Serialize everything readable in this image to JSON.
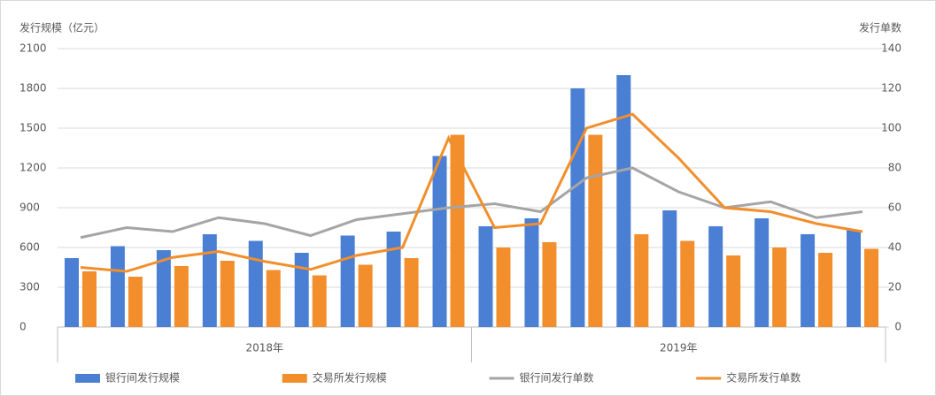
{
  "chart_data": {
    "type": "bar-line",
    "y_label": "发行规模（亿元）",
    "y2_label": "发行单数",
    "categories": [
      null,
      null,
      null,
      null,
      null,
      null,
      null,
      null,
      null,
      null,
      null,
      null,
      null,
      null,
      null,
      null,
      null,
      null
    ],
    "x_groups": [
      "2018年",
      "2019年"
    ],
    "ylim": [
      0,
      2100
    ],
    "yticks": [
      0,
      300,
      600,
      900,
      1200,
      1500,
      1800,
      2100
    ],
    "y2lim": [
      0,
      140
    ],
    "y2ticks": [
      0,
      20,
      40,
      60,
      80,
      100,
      120,
      140
    ],
    "grid": true,
    "series": [
      {
        "name": "银行间发行规模",
        "kind": "bar",
        "color": "#4a7fd4",
        "values": [
          520,
          610,
          580,
          700,
          650,
          560,
          690,
          720,
          1290,
          760,
          820,
          1800,
          1900,
          880,
          760,
          820,
          700,
          730
        ]
      },
      {
        "name": "交易所发行规模",
        "kind": "bar",
        "color": "#f28e2b",
        "values": [
          420,
          380,
          460,
          500,
          430,
          390,
          470,
          520,
          1450,
          600,
          640,
          1450,
          700,
          650,
          540,
          600,
          560,
          590
        ]
      },
      {
        "name": "银行间发行单数",
        "kind": "line",
        "axis": "y2",
        "color": "#a5a5a5",
        "values": [
          45,
          50,
          48,
          55,
          52,
          46,
          54,
          57,
          60,
          62,
          58,
          75,
          80,
          68,
          60,
          63,
          55,
          58
        ]
      },
      {
        "name": "交易所发行单数",
        "kind": "line",
        "axis": "y2",
        "color": "#f28e2b",
        "values": [
          30,
          28,
          35,
          38,
          33,
          29,
          36,
          40,
          95,
          50,
          52,
          100,
          107,
          85,
          60,
          58,
          52,
          48
        ]
      }
    ]
  }
}
